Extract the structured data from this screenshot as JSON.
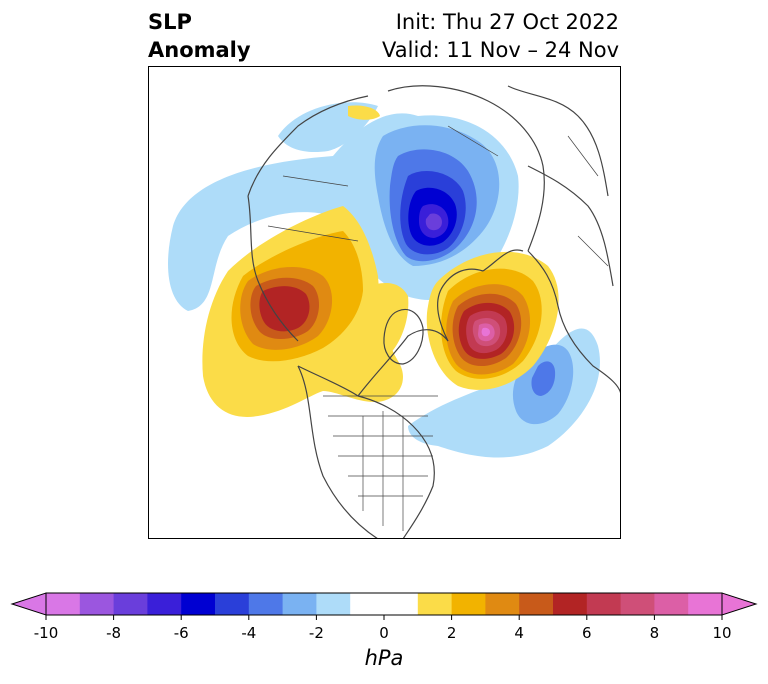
{
  "header": {
    "title_line1": "SLP",
    "title_line2": "Anomaly",
    "init_text": "Init: Thu 27 Oct 2022",
    "valid_text": "Valid: 11 Nov – 24 Nov"
  },
  "map": {
    "projection": "north-polar-stereographic",
    "variable": "sea-level-pressure-anomaly",
    "features": [
      {
        "kind": "low",
        "region": "northern-russia-siberia",
        "min_hpa": -7
      },
      {
        "kind": "high",
        "region": "alaska-bering",
        "max_hpa": 6
      },
      {
        "kind": "high",
        "region": "northern-europe-scandinavia",
        "max_hpa": 10
      },
      {
        "kind": "low",
        "region": "north-atlantic",
        "min_hpa": -5
      },
      {
        "kind": "high",
        "region": "canada-arctic",
        "max_hpa": 3
      }
    ]
  },
  "colorbar": {
    "units": "hPa",
    "range": [
      -10,
      10
    ],
    "tick_labels": [
      "-10",
      "-8",
      "-6",
      "-4",
      "-2",
      "0",
      "2",
      "4",
      "6",
      "8",
      "10"
    ],
    "tick_values": [
      -10,
      -8,
      -6,
      -4,
      -2,
      0,
      2,
      4,
      6,
      8,
      10
    ],
    "colors": [
      "#d977e6",
      "#9b56df",
      "#6a3edb",
      "#3a1fd9",
      "#0000d2",
      "#2a3fd9",
      "#4e78e8",
      "#7ab2f2",
      "#aedcf9",
      "#ffffff",
      "#ffffff",
      "#fbdc48",
      "#f2b300",
      "#e08a12",
      "#c85a1a",
      "#b22424",
      "#c23a52",
      "#cf4f78",
      "#dc5fa6",
      "#e874d6"
    ],
    "extend_low_color": "#d977e6",
    "extend_high_color": "#e874d6"
  }
}
